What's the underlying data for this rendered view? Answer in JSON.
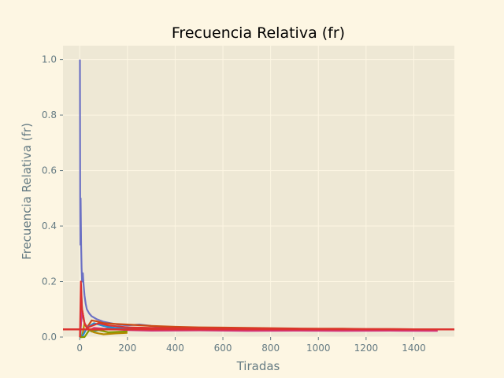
{
  "chart_data": {
    "type": "line",
    "title": "Frecuencia Relativa (fr)",
    "xlabel": "Tiradas",
    "ylabel": "Frecuencia Relativa (fr)",
    "xlim": [
      -70,
      1570
    ],
    "ylim": [
      0,
      1.05
    ],
    "x_ticks": [
      0,
      200,
      400,
      600,
      800,
      1000,
      1200,
      1400
    ],
    "y_ticks": [
      0.0,
      0.2,
      0.4,
      0.6,
      0.8,
      1.0
    ],
    "x_tick_labels": [
      "0",
      "200",
      "400",
      "600",
      "800",
      "1000",
      "1200",
      "1400"
    ],
    "y_tick_labels": [
      "0.0",
      "0.2",
      "0.4",
      "0.6",
      "0.8",
      "1.0"
    ],
    "grid": true,
    "reference_line": {
      "y": 0.0277,
      "color": "#dc322f"
    },
    "series": [
      {
        "color": "#6c71c4",
        "x": [
          1,
          2,
          3,
          4,
          6,
          8,
          10,
          13,
          16,
          20,
          25,
          30,
          40,
          50,
          70,
          100,
          130,
          160,
          200,
          250,
          300,
          350,
          400
        ],
        "y": [
          1.0,
          0.5,
          0.333,
          0.5,
          0.333,
          0.25,
          0.2,
          0.23,
          0.19,
          0.15,
          0.12,
          0.1,
          0.085,
          0.075,
          0.065,
          0.055,
          0.05,
          0.045,
          0.042,
          0.045,
          0.04,
          0.036,
          0.033
        ]
      },
      {
        "color": "#2aa198",
        "x": [
          1,
          2,
          4,
          6,
          10,
          15,
          20,
          30,
          50,
          80,
          120,
          200,
          300,
          400,
          500,
          600,
          700
        ],
        "y": [
          0.0,
          0.0,
          0.0,
          0.167,
          0.1,
          0.067,
          0.05,
          0.033,
          0.02,
          0.025,
          0.033,
          0.03,
          0.027,
          0.025,
          0.028,
          0.026,
          0.027
        ]
      },
      {
        "color": "#b58900",
        "x": [
          1,
          5,
          10,
          20,
          30,
          40,
          60,
          80,
          100,
          150,
          200
        ],
        "y": [
          0.0,
          0.0,
          0.0,
          0.05,
          0.033,
          0.025,
          0.017,
          0.013,
          0.01,
          0.013,
          0.015
        ]
      },
      {
        "color": "#cb4b16",
        "x": [
          1,
          10,
          20,
          30,
          50,
          70,
          100,
          150,
          200,
          300,
          400,
          500,
          600,
          700,
          800,
          900,
          1000,
          1100,
          1200,
          1300,
          1400,
          1500
        ],
        "y": [
          0.0,
          0.1,
          0.05,
          0.033,
          0.06,
          0.057,
          0.05,
          0.047,
          0.045,
          0.04,
          0.037,
          0.035,
          0.034,
          0.033,
          0.032,
          0.031,
          0.03,
          0.03,
          0.029,
          0.029,
          0.028,
          0.028
        ]
      },
      {
        "color": "#d33682",
        "x": [
          1,
          10,
          20,
          40,
          60,
          100,
          200,
          300,
          500,
          700,
          900,
          1100,
          1300,
          1500
        ],
        "y": [
          0.0,
          0.1,
          0.05,
          0.025,
          0.033,
          0.03,
          0.025,
          0.023,
          0.024,
          0.022,
          0.023,
          0.022,
          0.023,
          0.022
        ]
      },
      {
        "color": "#268bd2",
        "x": [
          1,
          10,
          30,
          60,
          100,
          150,
          200,
          250
        ],
        "y": [
          0.0,
          0.0,
          0.033,
          0.05,
          0.04,
          0.033,
          0.035,
          0.032
        ]
      },
      {
        "color": "#859900",
        "x": [
          1,
          10,
          20,
          40,
          80,
          120,
          160,
          200
        ],
        "y": [
          0.0,
          0.0,
          0.0,
          0.025,
          0.025,
          0.017,
          0.019,
          0.02
        ]
      },
      {
        "color": "#dc322f",
        "x": [
          1,
          5,
          10,
          20,
          30,
          50,
          80,
          120,
          200,
          300,
          400,
          600,
          800,
          1000,
          1200,
          1400,
          1500
        ],
        "y": [
          0.0,
          0.2,
          0.1,
          0.05,
          0.033,
          0.04,
          0.05,
          0.042,
          0.035,
          0.033,
          0.032,
          0.031,
          0.03,
          0.029,
          0.029,
          0.028,
          0.028
        ]
      }
    ]
  }
}
